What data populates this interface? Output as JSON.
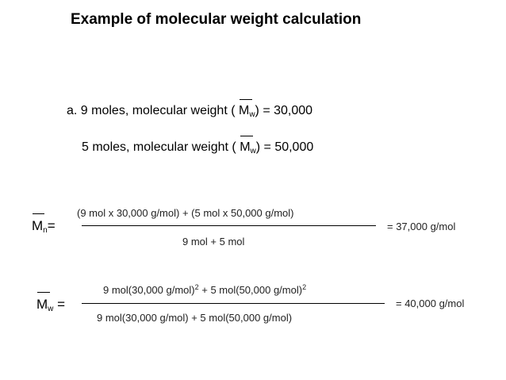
{
  "title": "Example of molecular weight calculation",
  "given": {
    "line1_prefix": "a. 9 moles, molecular weight ( ",
    "line1_symbol": "M",
    "line1_sub": "w",
    "line1_suffix": ") = 30,000",
    "line2_prefix": "5 moles, molecular weight ( ",
    "line2_symbol": "M",
    "line2_sub": "w",
    "line2_suffix": ") = 50,000"
  },
  "mn": {
    "symbol": "M",
    "sub": "n",
    "equals": "=",
    "numerator": "(9 mol x 30,000 g/mol) + (5 mol x 50,000 g/mol)",
    "denominator": "9 mol + 5 mol",
    "result": "= 37,000 g/mol"
  },
  "mw": {
    "symbol": "M",
    "sub": "w",
    "equals": "=",
    "numerator_part1": "9 mol(30,000 g/mol)",
    "numerator_exp1": "2",
    "numerator_part2": " + 5 mol(50,000 g/mol)",
    "numerator_exp2": "2",
    "denominator": "9 mol(30,000 g/mol) + 5 mol(50,000 g/mol)",
    "result": "= 40,000 g/mol"
  }
}
